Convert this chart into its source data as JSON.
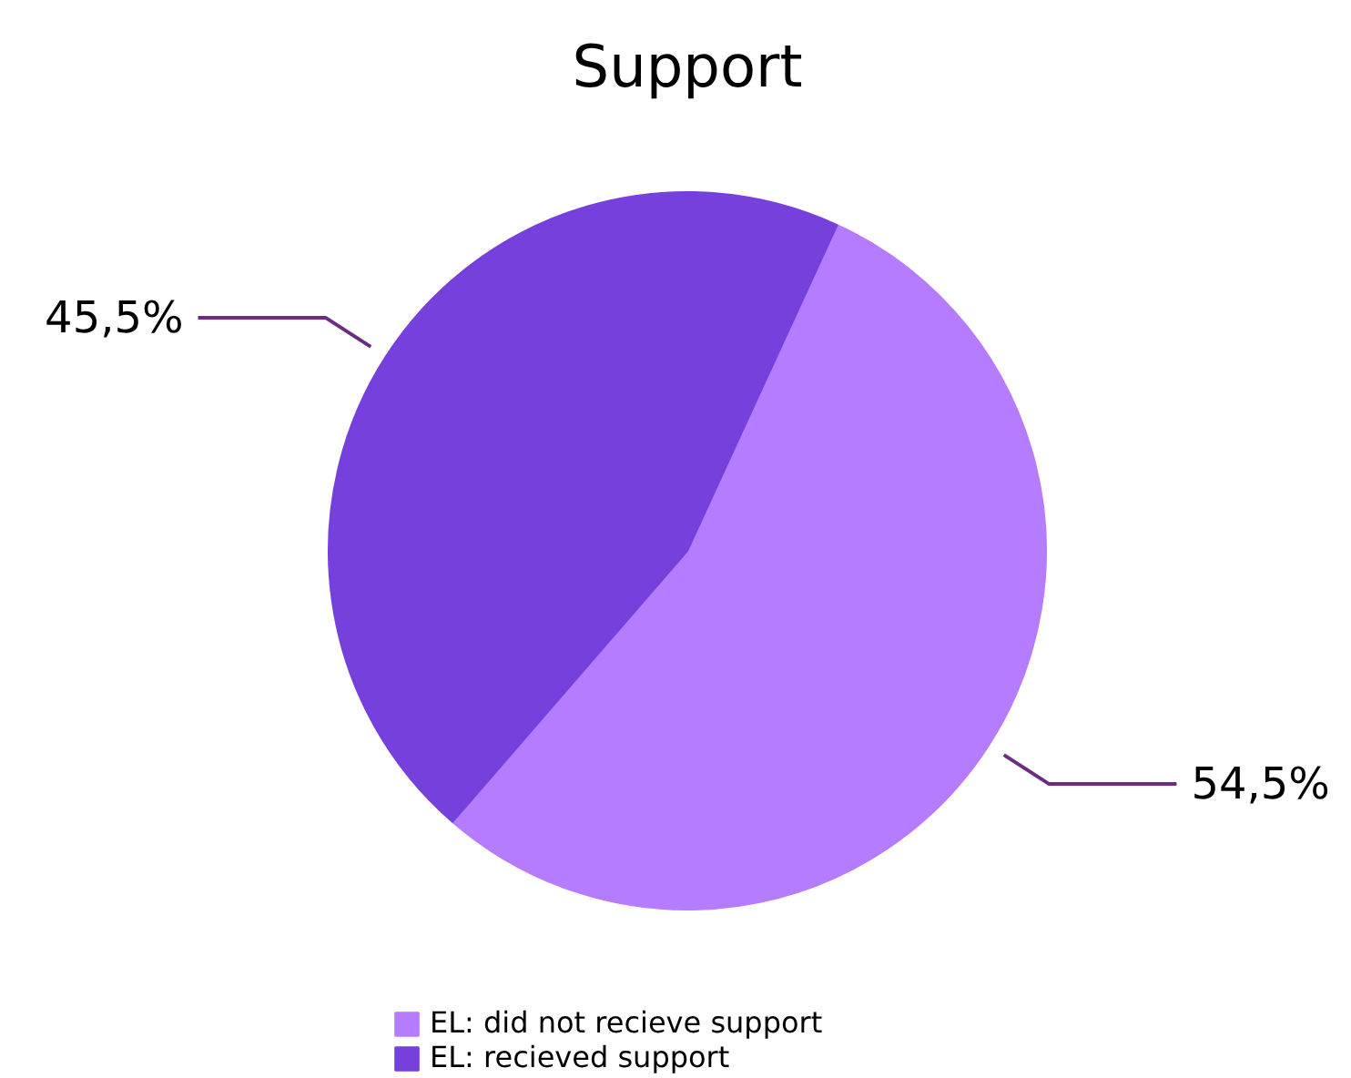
{
  "chart_data": {
    "type": "pie",
    "title": "Support",
    "categories": [
      "EL: did not recieve support",
      "EL: recieved support"
    ],
    "values": [
      54.5,
      45.5
    ],
    "value_labels": [
      "54,5%",
      "45,5%"
    ],
    "colors": [
      "#b57cff",
      "#7540dc"
    ],
    "legend": "bottom"
  }
}
